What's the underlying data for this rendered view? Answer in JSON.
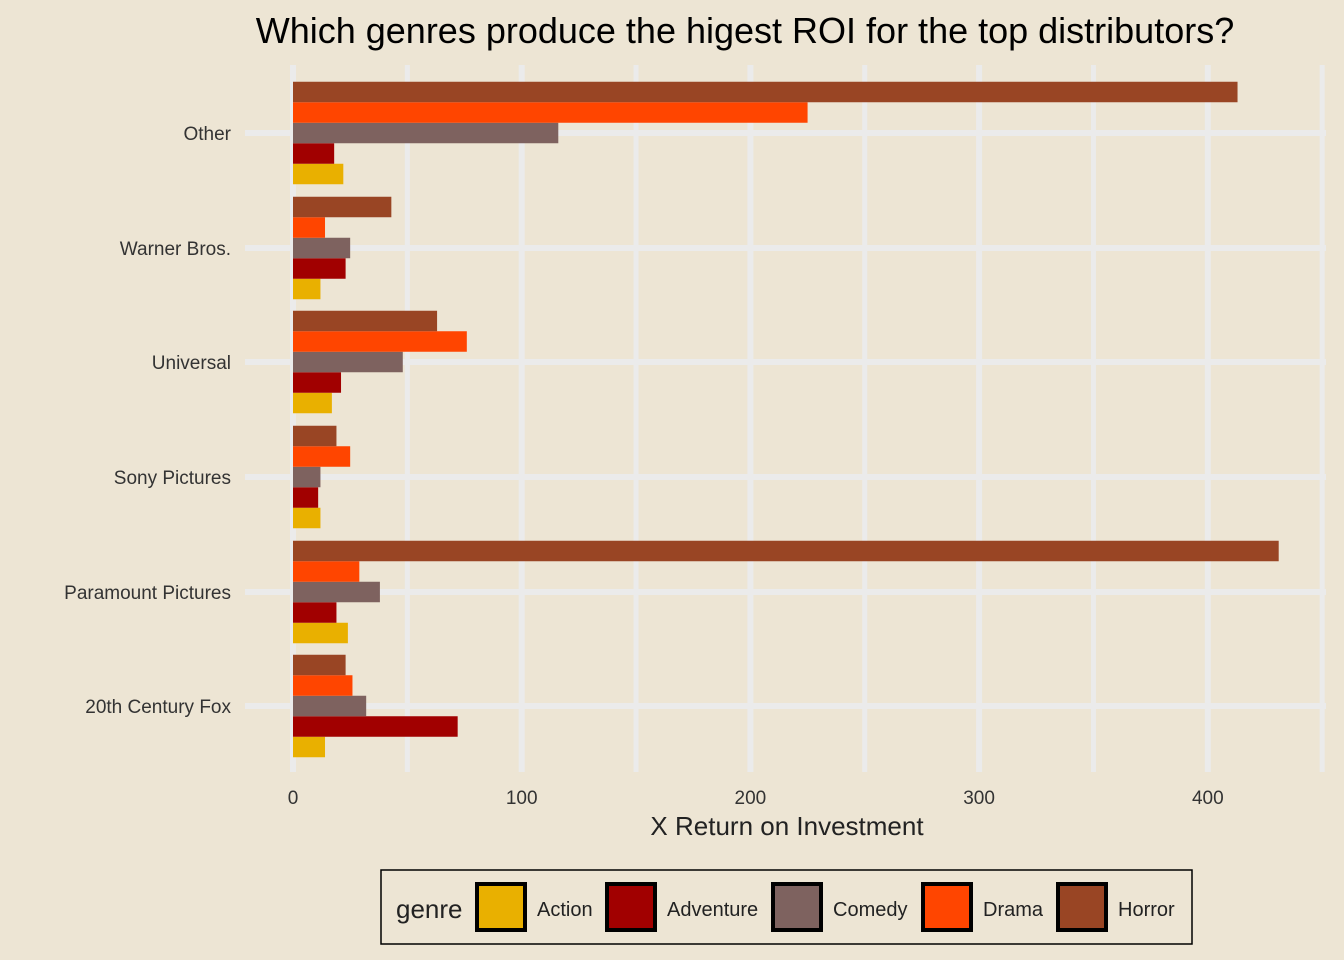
{
  "chart_data": {
    "type": "bar",
    "orientation": "horizontal",
    "title": "Which genres produce the higest ROI for the top distributors?",
    "xlabel": "X Return on Investment",
    "ylabel": "",
    "xlim": [
      0,
      450
    ],
    "x_ticks": [
      0,
      100,
      200,
      300,
      400
    ],
    "grid": true,
    "legend_position": "bottom",
    "legend_title": "genre",
    "categories": [
      "20th Century Fox",
      "Paramount Pictures",
      "Sony Pictures",
      "Universal",
      "Warner Bros.",
      "Other"
    ],
    "series": [
      {
        "name": "Action",
        "color": "#e9b000",
        "values": [
          14,
          24,
          12,
          17,
          12,
          22
        ]
      },
      {
        "name": "Adventure",
        "color": "#a10000",
        "values": [
          72,
          19,
          11,
          21,
          23,
          18
        ]
      },
      {
        "name": "Comedy",
        "color": "#7e625f",
        "values": [
          32,
          38,
          12,
          48,
          25,
          116
        ]
      },
      {
        "name": "Drama",
        "color": "#ff4500",
        "values": [
          26,
          29,
          25,
          76,
          14,
          225
        ]
      },
      {
        "name": "Horror",
        "color": "#994524",
        "values": [
          23,
          431,
          19,
          63,
          43,
          413
        ]
      }
    ]
  }
}
